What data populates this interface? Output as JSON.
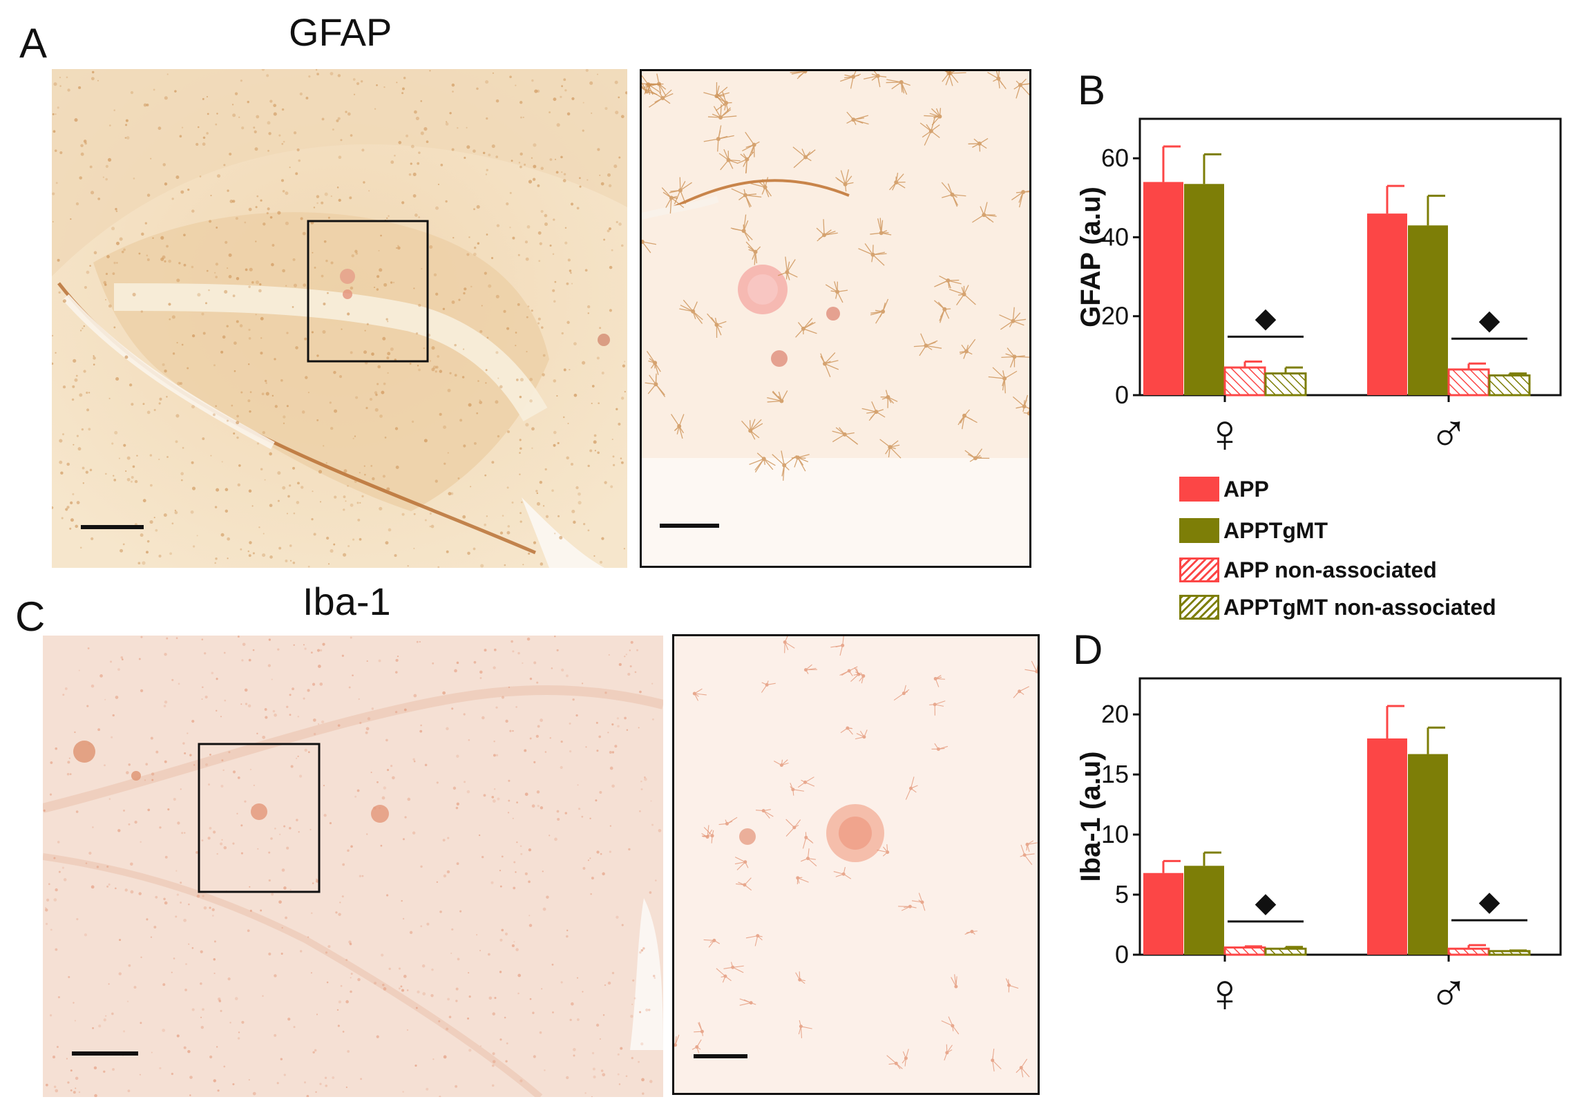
{
  "panels": {
    "a": {
      "letter": "A",
      "title": "GFAP"
    },
    "b": {
      "letter": "B"
    },
    "c": {
      "letter": "C",
      "title": "Iba-1"
    },
    "d": {
      "letter": "D"
    }
  },
  "colors": {
    "app": "#fc4646",
    "apptgmt": "#7d7e07",
    "gfap_stain_bg": "#f5e4c8",
    "gfap_stain_cells": "#c98a4a",
    "iba_stain_bg": "#f6e1d6",
    "iba_stain_cells": "#e08a68"
  },
  "legend": [
    {
      "label": "APP",
      "key": "app",
      "hatched": false
    },
    {
      "label": "APPTgMT",
      "key": "apptgmt",
      "hatched": false
    },
    {
      "label": "APP non-associated",
      "key": "app",
      "hatched": true
    },
    {
      "label": "APPTgMT non-associated",
      "key": "apptgmt",
      "hatched": true
    }
  ],
  "chart_data": [
    {
      "panel": "B",
      "type": "bar",
      "ylabel": "GFAP (a.u)",
      "ylim": [
        0,
        70
      ],
      "yticks": [
        "0",
        "20",
        "40",
        "60"
      ],
      "categories": [
        "♀",
        "♂"
      ],
      "significance_marker": "◆",
      "series": [
        {
          "name": "APP",
          "values": [
            54,
            46
          ],
          "errors": [
            9,
            7
          ],
          "hatched": false
        },
        {
          "name": "APPTgMT",
          "values": [
            53.5,
            43
          ],
          "errors": [
            7.5,
            7.5
          ],
          "hatched": false
        },
        {
          "name": "APP non-associated",
          "values": [
            7,
            6.5
          ],
          "errors": [
            1.5,
            1.5
          ],
          "hatched": true
        },
        {
          "name": "APPTgMT non-associated",
          "values": [
            5.5,
            5
          ],
          "errors": [
            1.5,
            0.5
          ],
          "hatched": true
        }
      ]
    },
    {
      "panel": "D",
      "type": "bar",
      "ylabel": "Iba-1 (a.u)",
      "ylim": [
        0,
        23
      ],
      "yticks": [
        "0",
        "5",
        "10",
        "15",
        "20"
      ],
      "categories": [
        "♀",
        "♂"
      ],
      "significance_marker": "◆",
      "series": [
        {
          "name": "APP",
          "values": [
            6.8,
            18
          ],
          "errors": [
            1,
            2.7
          ],
          "hatched": false
        },
        {
          "name": "APPTgMT",
          "values": [
            7.4,
            16.7
          ],
          "errors": [
            1.1,
            2.2
          ],
          "hatched": false
        },
        {
          "name": "APP non-associated",
          "values": [
            0.6,
            0.5
          ],
          "errors": [
            0.1,
            0.3
          ],
          "hatched": true
        },
        {
          "name": "APPTgMT non-associated",
          "values": [
            0.5,
            0.3
          ],
          "errors": [
            0.15,
            0.05
          ],
          "hatched": true
        }
      ]
    }
  ]
}
